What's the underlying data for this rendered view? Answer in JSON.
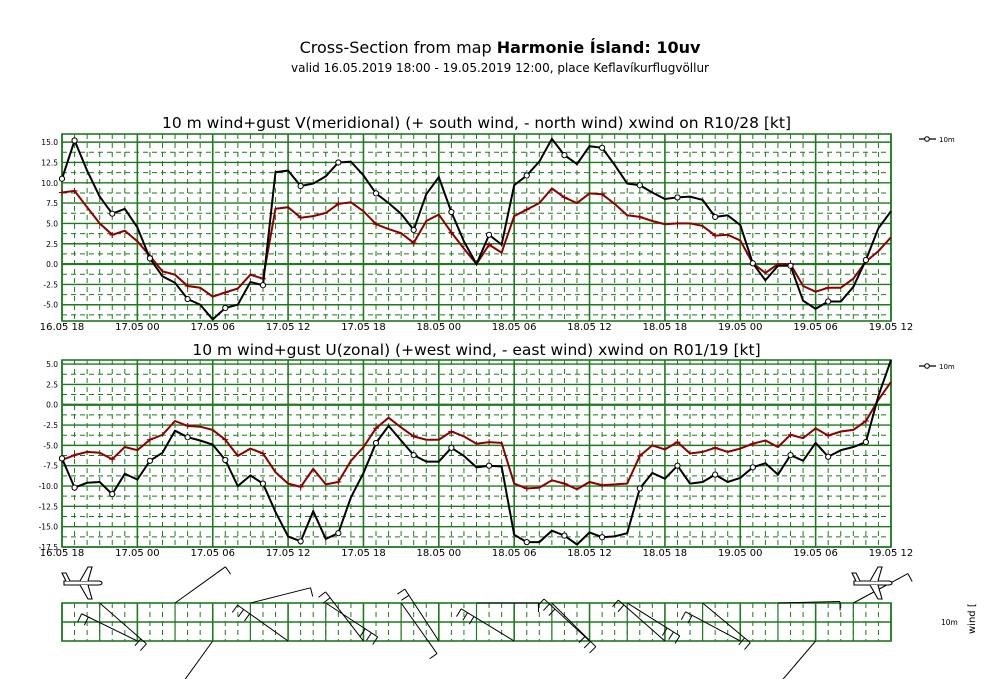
{
  "header": {
    "title_prefix": "Cross-Section from map ",
    "title_bold": "Harmonie Ísland: 10uv",
    "subtitle": "valid 16.05.2019 18:00 - 19.05.2019 12:00, place Keflavíkurflugvöllur"
  },
  "colors": {
    "grid": "#1f7a1f",
    "wind_line": "#000000",
    "gust_line": "#8b0000"
  },
  "x_tick_labels": [
    "16.05 18",
    "17.05 00",
    "17.05 06",
    "17.05 12",
    "17.05 18",
    "18.05 00",
    "18.05 06",
    "18.05 12",
    "18.05 18",
    "19.05 00",
    "19.05 06",
    "19.05 12"
  ],
  "chart_data": [
    {
      "type": "line",
      "title": "10 m wind+gust V(meridional) (+ south wind, - north wind) xwind on R10/28 [kt]",
      "ylim": [
        -7,
        16
      ],
      "y_ticks": [
        15,
        12.5,
        10,
        7.5,
        5,
        2.5,
        0,
        -2.5,
        -5
      ],
      "y_tick_labels": [
        "15.0",
        "12.5",
        "10.0",
        "7.5",
        "5.0",
        "2.5",
        "0.0",
        "-2.5",
        "-5.0"
      ],
      "x_range_hours": [
        0,
        66
      ],
      "grid": true,
      "legend": {
        "label": "10m",
        "position": "right"
      },
      "series": [
        {
          "name": "10m",
          "color": "#000000",
          "values": [
            10.5,
            15.2,
            11.5,
            8.3,
            6.2,
            6.8,
            4.5,
            0.7,
            -1.5,
            -2.3,
            -4.3,
            -5.0,
            -6.8,
            -5.4,
            -5.0,
            -2.2,
            -2.6,
            11.3,
            11.5,
            9.6,
            9.9,
            10.8,
            12.5,
            12.6,
            10.9,
            8.7,
            7.5,
            6.2,
            4.2,
            8.6,
            10.7,
            6.4,
            2.8,
            0.0,
            3.6,
            2.4,
            9.7,
            10.9,
            12.6,
            15.4,
            13.4,
            12.3,
            14.5,
            14.3,
            12.2,
            9.9,
            9.7,
            8.8,
            8.0,
            8.2,
            8.3,
            7.9,
            5.8,
            6.0,
            4.8,
            0.1,
            -2.0,
            -0.2,
            -0.2,
            -4.5,
            -5.5,
            -4.6,
            -4.6,
            -2.8,
            0.5,
            4.4,
            6.5
          ]
        },
        {
          "name": "gust",
          "color": "#8b0000",
          "values": [
            8.8,
            9.0,
            7.0,
            5.0,
            3.6,
            4.1,
            2.8,
            1.0,
            -0.9,
            -1.3,
            -2.7,
            -2.9,
            -4.0,
            -3.5,
            -3.0,
            -1.3,
            -1.8,
            6.8,
            7.0,
            5.7,
            5.9,
            6.3,
            7.4,
            7.6,
            6.5,
            4.9,
            4.3,
            3.8,
            2.6,
            5.3,
            6.1,
            3.9,
            1.9,
            0.0,
            2.4,
            1.4,
            5.9,
            6.7,
            7.5,
            9.3,
            8.2,
            7.5,
            8.7,
            8.6,
            7.4,
            6.0,
            5.8,
            5.3,
            4.9,
            5.0,
            5.0,
            4.7,
            3.5,
            3.6,
            2.9,
            0.1,
            -1.1,
            0.0,
            0.0,
            -2.7,
            -3.4,
            -2.9,
            -2.9,
            -1.8,
            0.3,
            1.6,
            3.3
          ]
        }
      ]
    },
    {
      "type": "line",
      "title": "10 m wind+gust U(zonal) (+west wind, - east wind) xwind on R01/19 [kt]",
      "ylim": [
        -17.5,
        5.5
      ],
      "y_ticks": [
        5,
        2.5,
        0,
        -2.5,
        -5,
        -7.5,
        -10,
        -12.5,
        -15,
        -17.5
      ],
      "y_tick_labels": [
        "5.0",
        "2.5",
        "0.0",
        "-2.5",
        "-5.0",
        "-7.5",
        "-10.0",
        "-12.5",
        "-15.0",
        "-17.5"
      ],
      "x_range_hours": [
        0,
        66
      ],
      "grid": true,
      "legend": {
        "label": "10m",
        "position": "right"
      },
      "series": [
        {
          "name": "10m",
          "color": "#000000",
          "values": [
            -6.6,
            -10.2,
            -9.6,
            -9.5,
            -11.0,
            -8.5,
            -9.2,
            -6.9,
            -5.9,
            -3.2,
            -4.0,
            -4.4,
            -4.9,
            -6.8,
            -10.0,
            -8.7,
            -9.7,
            -13.2,
            -16.2,
            -16.8,
            -13.1,
            -16.5,
            -15.8,
            -11.4,
            -8.4,
            -4.7,
            -2.6,
            -4.4,
            -6.2,
            -7.0,
            -7.0,
            -5.3,
            -6.3,
            -7.7,
            -7.5,
            -7.6,
            -16.0,
            -16.9,
            -16.9,
            -15.5,
            -16.1,
            -17.2,
            -15.7,
            -16.3,
            -16.2,
            -15.8,
            -10.3,
            -8.4,
            -9.1,
            -7.5,
            -9.7,
            -9.5,
            -8.6,
            -9.5,
            -9.0,
            -7.7,
            -7.2,
            -8.6,
            -6.2,
            -6.9,
            -4.7,
            -6.4,
            -5.6,
            -5.2,
            -4.6,
            1.1,
            5.5
          ]
        },
        {
          "name": "gust",
          "color": "#8b0000",
          "values": [
            -6.8,
            -6.2,
            -5.8,
            -5.9,
            -6.7,
            -5.2,
            -5.6,
            -4.3,
            -3.7,
            -2.0,
            -2.6,
            -2.7,
            -3.1,
            -4.3,
            -6.3,
            -5.4,
            -6.0,
            -8.3,
            -9.7,
            -10.1,
            -7.9,
            -9.8,
            -9.5,
            -6.9,
            -5.2,
            -2.9,
            -1.6,
            -2.8,
            -3.9,
            -4.3,
            -4.3,
            -3.3,
            -3.9,
            -4.8,
            -4.6,
            -4.7,
            -9.7,
            -10.3,
            -10.2,
            -9.3,
            -9.7,
            -10.4,
            -9.5,
            -9.9,
            -9.8,
            -9.7,
            -6.3,
            -5.0,
            -5.5,
            -4.6,
            -6.0,
            -5.8,
            -5.3,
            -5.8,
            -5.4,
            -4.8,
            -4.4,
            -5.2,
            -3.7,
            -4.1,
            -2.9,
            -3.8,
            -3.3,
            -3.1,
            -2.0,
            0.6,
            2.8
          ]
        }
      ]
    }
  ],
  "barbs": {
    "side_label": "10m",
    "vertical_label": "wind [",
    "plane_icon_start": "airplane-icon",
    "plane_icon_end": "airplane-icon"
  }
}
